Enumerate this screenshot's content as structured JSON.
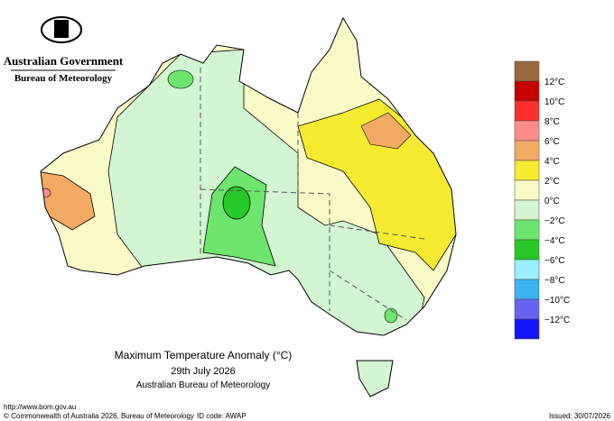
{
  "header": {
    "government": "Australian Government",
    "agency": "Bureau of Meteorology"
  },
  "legend": {
    "colors": [
      "#9c6a3e",
      "#c80000",
      "#ff2e2e",
      "#ff8c8c",
      "#f5aa64",
      "#f5ec32",
      "#fafac8",
      "#d2f5d2",
      "#6ee66e",
      "#28c828",
      "#9af0ff",
      "#3cb4f0",
      "#6464f0",
      "#1414ff"
    ],
    "labels": [
      "12°C",
      "10°C",
      "8°C",
      "6°C",
      "4°C",
      "2°C",
      "0°C",
      "−2°C",
      "−4°C",
      "−6°C",
      "−8°C",
      "−10°C",
      "−12°C"
    ]
  },
  "title": {
    "main": "Maximum Temperature Anomaly (°C)",
    "date": "29th July 2026",
    "source": "Australian Bureau of Meteorology"
  },
  "footer": {
    "url": "http://www.bom.gov.au",
    "copyright": "© Commonwealth of Australia 2026, Bureau of Meteorology",
    "id_code": "ID code: AWAP",
    "issued": "Issued: 30/07/2026"
  }
}
